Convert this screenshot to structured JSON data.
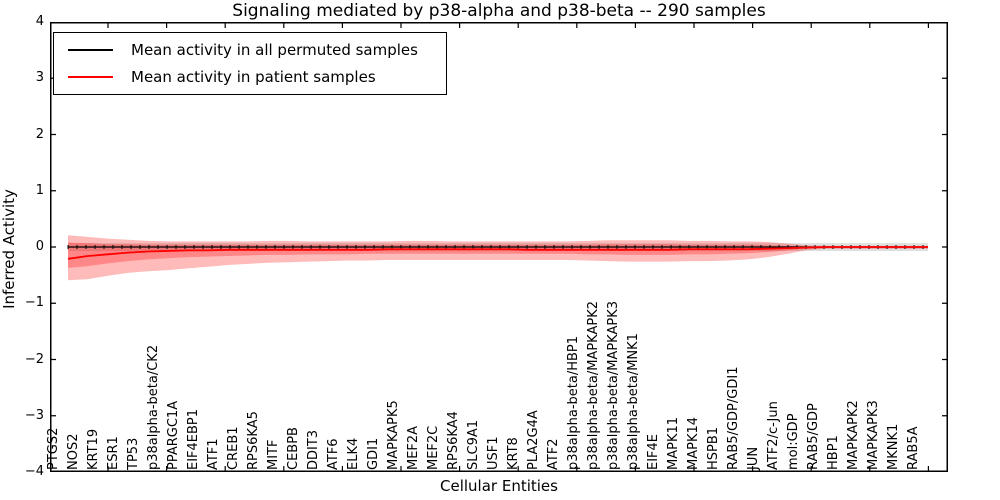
{
  "title": "Signaling mediated by p38-alpha and p38-beta -- 290 samples",
  "axes": {
    "ylabel": "Inferred Activity",
    "xlabel": "Cellular Entities",
    "ytick_labels": [
      "4",
      "3",
      "2",
      "1",
      "0",
      "−1",
      "−2",
      "−3",
      "−4"
    ],
    "ylim": [
      -4,
      4
    ]
  },
  "legend": {
    "items": [
      {
        "label": "Mean activity in all permuted samples",
        "color": "#000000"
      },
      {
        "label": "Mean activity in patient samples",
        "color": "#ff0000"
      }
    ]
  },
  "colors": {
    "patient_line": "#ff0000",
    "permuted_line": "#000000",
    "patient_band_fill": "rgba(255,0,0,0.27)",
    "permuted_band_fill": "rgba(0,0,0,0.13)",
    "axis": "#000000"
  },
  "chart_data": {
    "type": "line",
    "title": "Signaling mediated by p38-alpha and p38-beta -- 290 samples",
    "xlabel": "Cellular Entities",
    "ylabel": "Inferred Activity",
    "ylim": [
      -4,
      4
    ],
    "grid": false,
    "legend_position": "upper left",
    "categories": [
      "PTGS2",
      "NOS2",
      "KRT19",
      "ESR1",
      "TP53",
      "p38alpha-beta/CK2",
      "PPARGC1A",
      "EIF4EBP1",
      "ATF1",
      "CREB1",
      "RPS6KA5",
      "MITF",
      "CEBPB",
      "DDIT3",
      "ATF6",
      "ELK4",
      "GDI1",
      "MAPKAPK5",
      "MEF2A",
      "MEF2C",
      "RPS6KA4",
      "SLC9A1",
      "USF1",
      "KRT8",
      "PLA2G4A",
      "ATF2",
      "p38alpha-beta/HBP1",
      "p38alpha-beta/MAPKAPK2",
      "p38alpha-beta/MAPKAPK3",
      "p38alpha-beta/MNK1",
      "EIF4E",
      "MAPK11",
      "MAPK14",
      "HSPB1",
      "RAB5/GDP/GDI1",
      "JUN",
      "ATF2/c-Jun",
      "mol:GDP",
      "RAB5/GDP",
      "HBP1",
      "MAPKAPK2",
      "MAPKAPK3",
      "MKNK1",
      "RAB5A"
    ],
    "series": [
      {
        "name": "Mean activity in all permuted samples",
        "constant_value": 0,
        "band_halfwidth": 0.07
      },
      {
        "name": "Mean activity in patient samples",
        "values": [
          -0.21,
          -0.16,
          -0.13,
          -0.1,
          -0.08,
          -0.07,
          -0.06,
          -0.06,
          -0.05,
          -0.05,
          -0.05,
          -0.05,
          -0.05,
          -0.05,
          -0.05,
          -0.05,
          -0.04,
          -0.04,
          -0.04,
          -0.04,
          -0.04,
          -0.04,
          -0.04,
          -0.05,
          -0.05,
          -0.05,
          -0.05,
          -0.05,
          -0.05,
          -0.05,
          -0.05,
          -0.04,
          -0.04,
          -0.04,
          -0.04,
          -0.03,
          -0.02,
          -0.01,
          0.0,
          0.0,
          0.0,
          0.0,
          0.0,
          0.0
        ],
        "outer_band_top": [
          0.21,
          0.18,
          0.15,
          0.13,
          0.11,
          0.1,
          0.1,
          0.1,
          0.1,
          0.1,
          0.11,
          0.11,
          0.1,
          0.1,
          0.1,
          0.1,
          0.1,
          0.11,
          0.11,
          0.1,
          0.1,
          0.1,
          0.1,
          0.1,
          0.1,
          0.1,
          0.11,
          0.12,
          0.12,
          0.12,
          0.12,
          0.11,
          0.11,
          0.1,
          0.1,
          0.09,
          0.06,
          0.03,
          0.02,
          0.02,
          0.02,
          0.02,
          0.02,
          0.02
        ],
        "outer_band_bottom": [
          -0.59,
          -0.57,
          -0.51,
          -0.46,
          -0.43,
          -0.41,
          -0.38,
          -0.35,
          -0.32,
          -0.3,
          -0.28,
          -0.27,
          -0.26,
          -0.25,
          -0.24,
          -0.24,
          -0.23,
          -0.23,
          -0.23,
          -0.23,
          -0.23,
          -0.23,
          -0.23,
          -0.23,
          -0.23,
          -0.23,
          -0.24,
          -0.25,
          -0.26,
          -0.26,
          -0.26,
          -0.25,
          -0.25,
          -0.24,
          -0.22,
          -0.18,
          -0.12,
          -0.05,
          -0.03,
          -0.03,
          -0.03,
          -0.03,
          -0.03,
          -0.03
        ],
        "inner_band_top": [
          0.08,
          0.07,
          0.05,
          0.05,
          0.04,
          0.04,
          0.04,
          0.04,
          0.04,
          0.04,
          0.04,
          0.04,
          0.04,
          0.04,
          0.04,
          0.04,
          0.04,
          0.04,
          0.04,
          0.04,
          0.04,
          0.04,
          0.04,
          0.04,
          0.04,
          0.04,
          0.04,
          0.05,
          0.05,
          0.05,
          0.05,
          0.04,
          0.04,
          0.04,
          0.04,
          0.03,
          0.02,
          0.01,
          0.01,
          0.01,
          0.01,
          0.01,
          0.01,
          0.01
        ],
        "inner_band_bottom": [
          -0.37,
          -0.34,
          -0.29,
          -0.25,
          -0.22,
          -0.2,
          -0.18,
          -0.17,
          -0.16,
          -0.15,
          -0.14,
          -0.14,
          -0.13,
          -0.13,
          -0.13,
          -0.12,
          -0.12,
          -0.12,
          -0.12,
          -0.12,
          -0.12,
          -0.12,
          -0.12,
          -0.12,
          -0.12,
          -0.12,
          -0.13,
          -0.13,
          -0.14,
          -0.14,
          -0.14,
          -0.13,
          -0.13,
          -0.12,
          -0.11,
          -0.09,
          -0.06,
          -0.02,
          -0.02,
          -0.02,
          -0.02,
          -0.02,
          -0.02,
          -0.02
        ]
      }
    ]
  }
}
